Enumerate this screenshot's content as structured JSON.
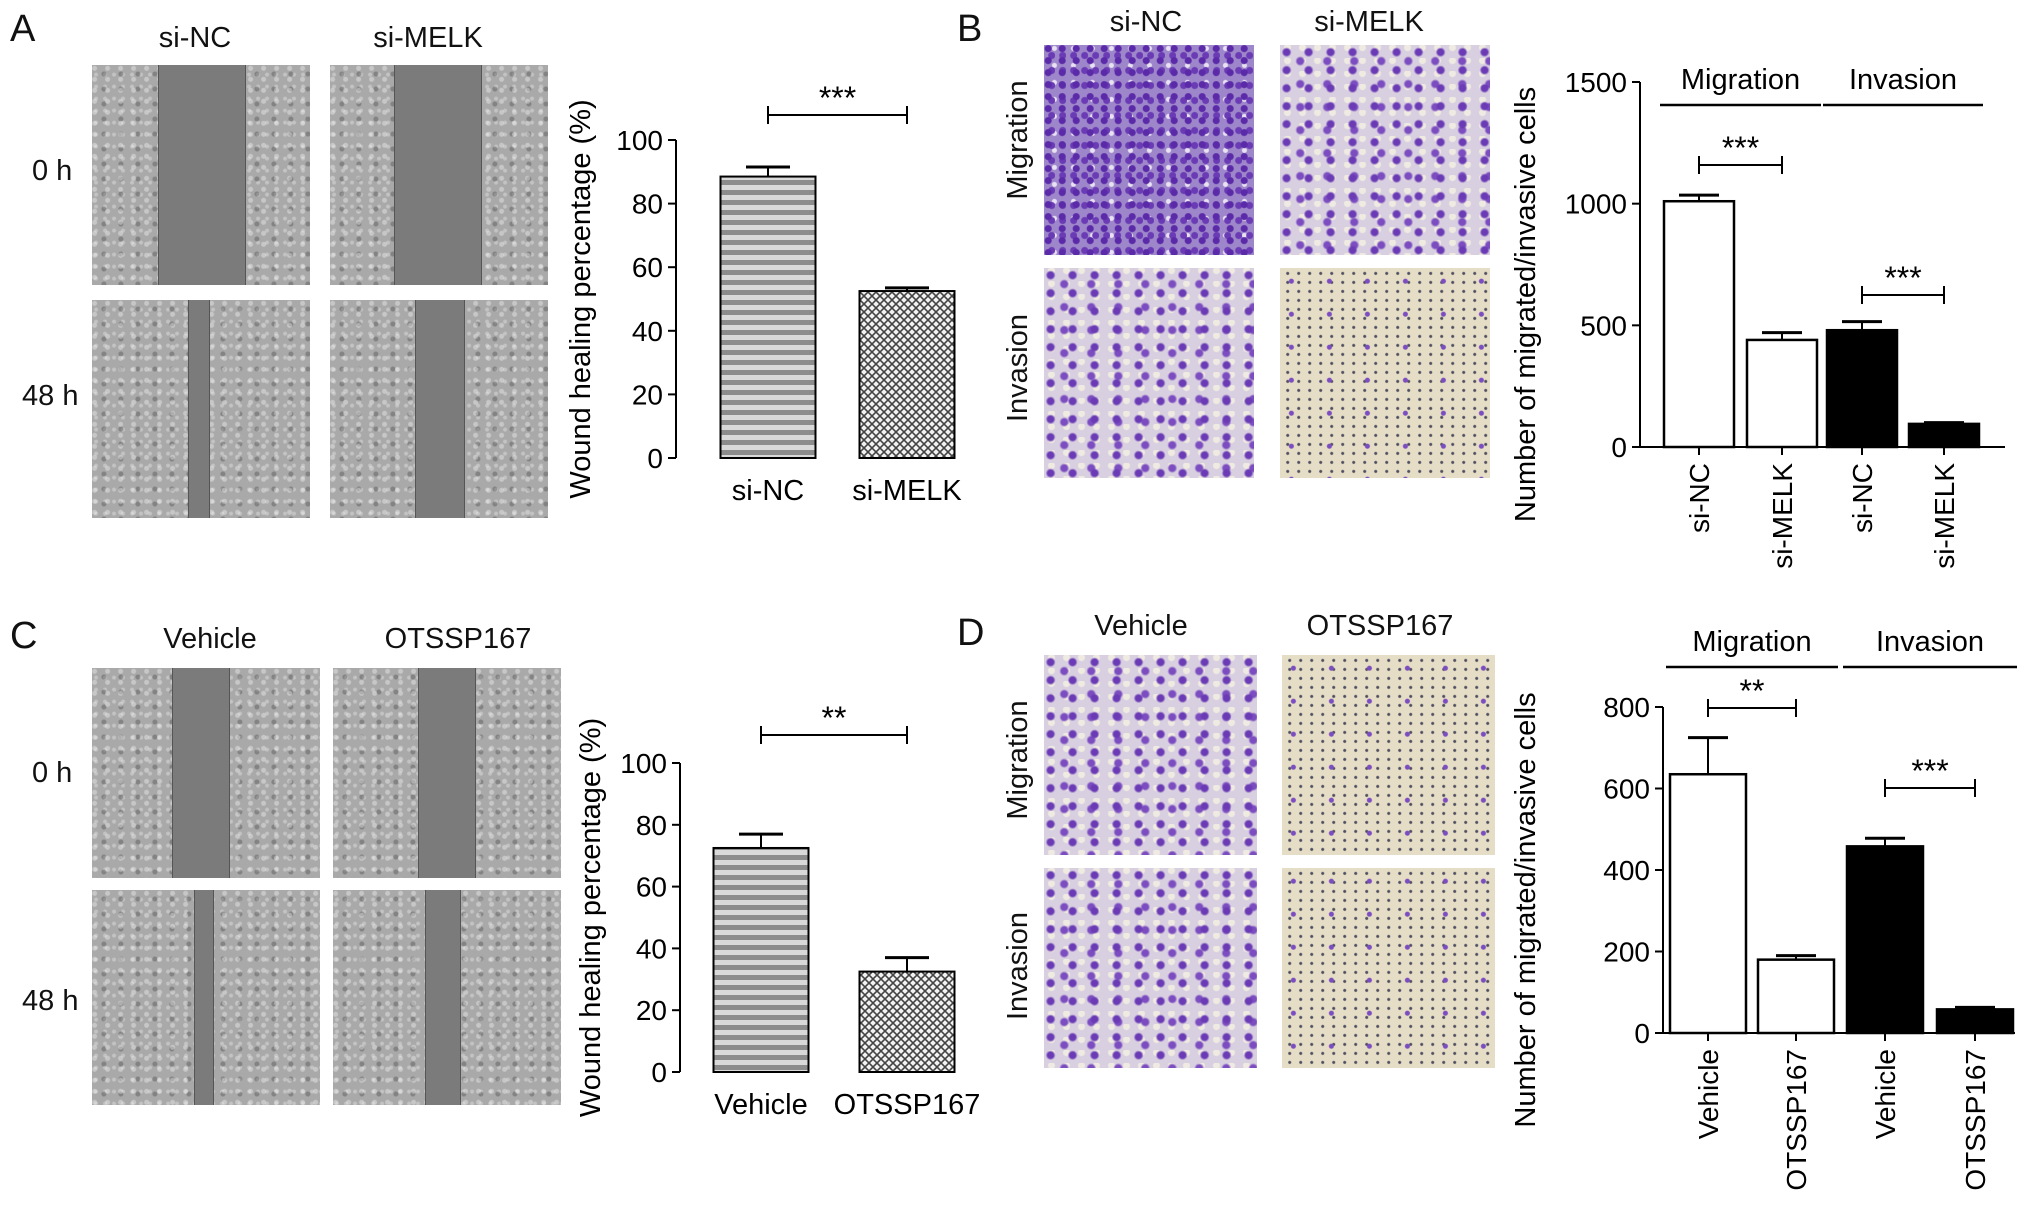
{
  "panels": {
    "A": {
      "label": "A",
      "col_labels": [
        "si-NC",
        "si-MELK"
      ],
      "row_labels": [
        "0 h",
        "48 h"
      ],
      "chart": {
        "type": "bar",
        "ylabel": "Wound healing percentage (%)",
        "ylim": [
          0,
          100
        ],
        "yticks": [
          "0",
          "20",
          "40",
          "60",
          "80",
          "100"
        ],
        "categories": [
          "si-NC",
          "si-MELK"
        ],
        "values": [
          88.5,
          52.5
        ],
        "errors": [
          3,
          1
        ],
        "significance": "***"
      }
    },
    "B": {
      "label": "B",
      "col_labels": [
        "si-NC",
        "si-MELK"
      ],
      "row_labels": [
        "Migration",
        "Invasion"
      ],
      "chart": {
        "type": "bar",
        "ylabel": "Number of migrated/invasive cells",
        "ylim": [
          0,
          1500
        ],
        "yticks": [
          "0",
          "500",
          "1000",
          "1500"
        ],
        "group_labels": [
          "Migration",
          "Invasion"
        ],
        "categories": [
          "si-NC",
          "si-MELK",
          "si-NC",
          "si-MELK"
        ],
        "values": [
          1010,
          440,
          480,
          95
        ],
        "errors": [
          25,
          30,
          35,
          5
        ],
        "significance": [
          "***",
          "***"
        ]
      }
    },
    "C": {
      "label": "C",
      "col_labels": [
        "Vehicle",
        "OTSSP167"
      ],
      "row_labels": [
        "0 h",
        "48 h"
      ],
      "chart": {
        "type": "bar",
        "ylabel": "Wound healing percentage (%)",
        "ylim": [
          0,
          100
        ],
        "yticks": [
          "0",
          "20",
          "40",
          "60",
          "80",
          "100"
        ],
        "categories": [
          "Vehicle",
          "OTSSP167"
        ],
        "values": [
          72.5,
          32.5
        ],
        "errors": [
          4.5,
          4.5
        ],
        "significance": "**"
      }
    },
    "D": {
      "label": "D",
      "col_labels": [
        "Vehicle",
        "OTSSP167"
      ],
      "row_labels": [
        "Migration",
        "Invasion"
      ],
      "chart": {
        "type": "bar",
        "ylabel": "Number of migrated/invasive cells",
        "ylim": [
          0,
          800
        ],
        "yticks": [
          "0",
          "200",
          "400",
          "600",
          "800"
        ],
        "group_labels": [
          "Migration",
          "Invasion"
        ],
        "categories": [
          "Vehicle",
          "OTSSP167",
          "Vehicle",
          "OTSSP167"
        ],
        "values": [
          635,
          180,
          458,
          58
        ],
        "errors": [
          90,
          10,
          20,
          5
        ],
        "significance": [
          "**",
          "***"
        ]
      }
    }
  }
}
